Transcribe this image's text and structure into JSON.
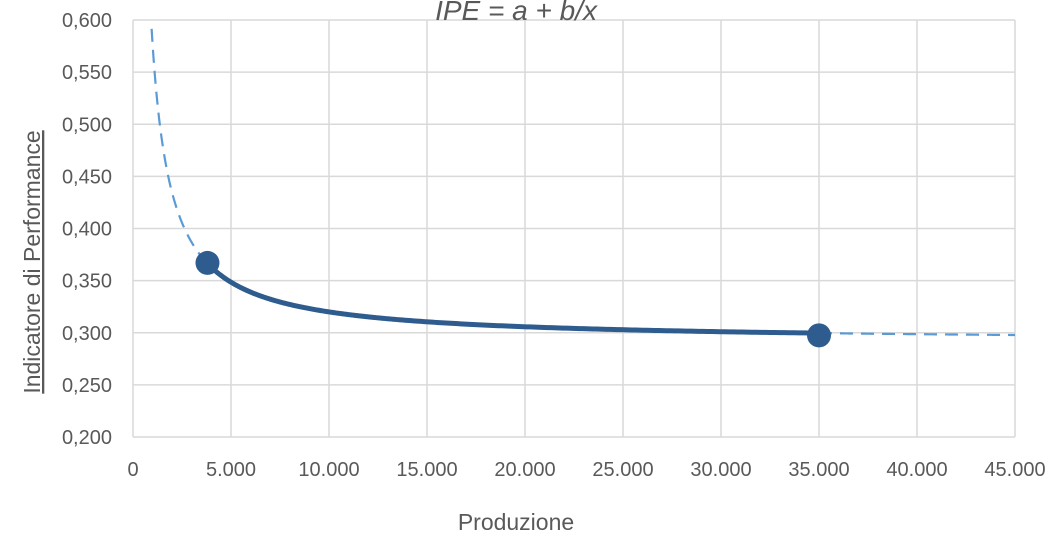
{
  "chart_data": {
    "type": "line",
    "title": "IPE = a + b/x",
    "xlabel": "Produzione",
    "ylabel": "Indicatore di Performance",
    "xlim": [
      0,
      45000
    ],
    "ylim": [
      0.2,
      0.6
    ],
    "x_ticks": [
      0,
      5000,
      10000,
      15000,
      20000,
      25000,
      30000,
      35000,
      40000,
      45000
    ],
    "x_tick_labels": [
      "0",
      "5.000",
      "10.000",
      "15.000",
      "20.000",
      "25.000",
      "30.000",
      "35.000",
      "40.000",
      "45.000"
    ],
    "y_ticks": [
      0.2,
      0.25,
      0.3,
      0.35,
      0.4,
      0.45,
      0.5,
      0.55,
      0.6
    ],
    "y_tick_labels": [
      "0,200",
      "0,250",
      "0,300",
      "0,350",
      "0,400",
      "0,450",
      "0,500",
      "0,550",
      "0,600"
    ],
    "grid": true,
    "model": {
      "a": 0.2915,
      "b": 285
    },
    "series": [
      {
        "style": "dashed",
        "x_range": [
          950,
          3800
        ],
        "color": "#5b9bd5"
      },
      {
        "style": "solid",
        "x_range": [
          3800,
          35000
        ],
        "color": "#2e5c8e"
      },
      {
        "style": "dashed",
        "x_range": [
          35000,
          45000
        ],
        "color": "#5b9bd5"
      }
    ],
    "points": [
      {
        "x": 3800,
        "y": 0.367
      },
      {
        "x": 35000,
        "y": 0.2975
      }
    ],
    "colors": {
      "grid": "#d9d9d9",
      "text": "#595959",
      "marker": "#2e5c8e"
    }
  }
}
